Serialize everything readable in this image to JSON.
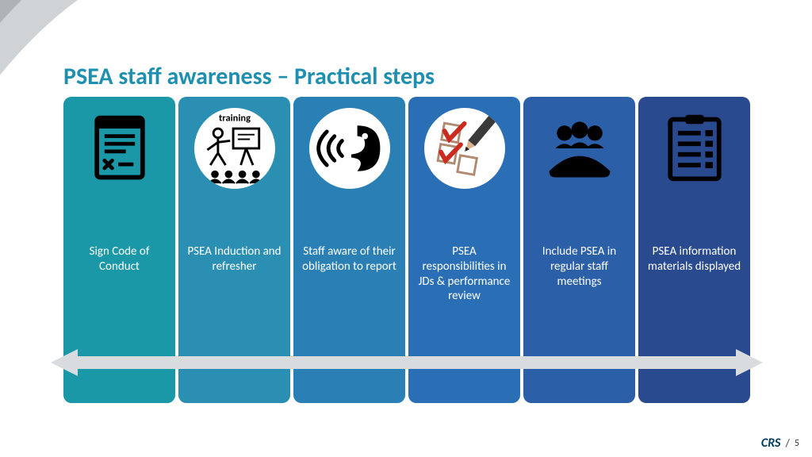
{
  "title": {
    "text": "PSEA staff awareness – Practical steps",
    "color": "#1f8fb0",
    "fontsize": 30
  },
  "cards": {
    "label_fontsize": 15,
    "label_margin_top": 70,
    "items": [
      {
        "label": "Sign Code of Conduct",
        "bg": "#1a98a8",
        "icon_bg": "none",
        "icon": "document-x"
      },
      {
        "label": "PSEA Induction and refresher",
        "bg": "#2a8fb3",
        "icon_bg": "circle",
        "icon": "training"
      },
      {
        "label": "Staff aware of their obligation to report",
        "bg": "#2a80b5",
        "icon_bg": "circle",
        "icon": "speaking"
      },
      {
        "label": "PSEA responsibilities in JDs & performance review",
        "bg": "#2a6fb5",
        "icon_bg": "circle",
        "icon": "checklist-pencil"
      },
      {
        "label": "Include PSEA in regular staff meetings",
        "bg": "#2b5fa8",
        "icon_bg": "none",
        "icon": "meeting"
      },
      {
        "label": "PSEA information materials displayed",
        "bg": "#2a4a8f",
        "icon_bg": "none",
        "icon": "clipboard-list"
      }
    ]
  },
  "arrow": {
    "fill": "#d9dcde",
    "stroke": "#c7cace"
  },
  "swoosh": {
    "outer": "#cfd3d6",
    "inner": "#aeb3b7"
  },
  "footer": {
    "logo_text": "CRS",
    "logo_color": "#003a5d",
    "separator": "/",
    "page": "5"
  }
}
